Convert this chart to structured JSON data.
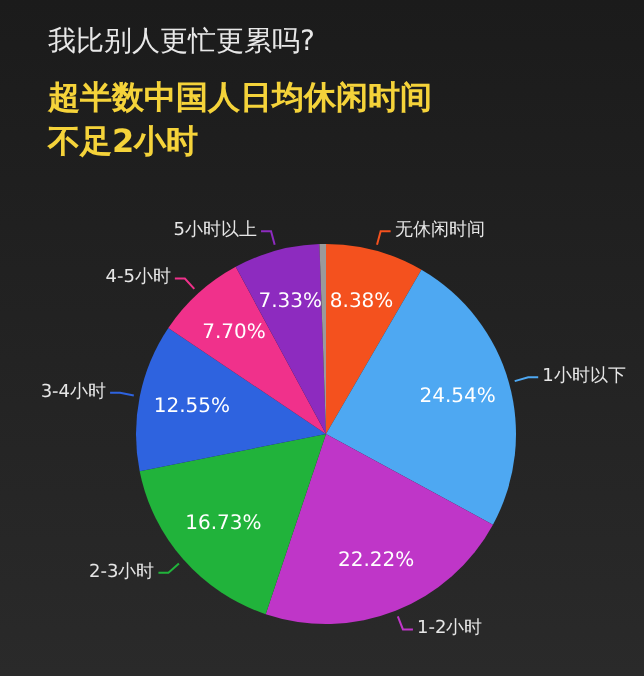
{
  "chart_data": {
    "type": "pie",
    "title": "我比别人更忙更累吗?",
    "subtitle": "超半数中国人日均休闲时间不足2小时",
    "categories": [
      "无休闲时间",
      "1小时以下",
      "1-2小时",
      "2-3小时",
      "3-4小时",
      "4-5小时",
      "5小时以上",
      null
    ],
    "values": [
      8.38,
      24.54,
      22.22,
      16.73,
      12.55,
      7.7,
      7.33,
      0.55
    ],
    "colors": [
      "#f4511e",
      "#4ea8f2",
      "#bf36c8",
      "#21b33b",
      "#2e63df",
      "#f0318b",
      "#8d2bbf",
      "#9a9a9a"
    ],
    "value_labels": [
      "8.38%",
      "24.54%",
      "22.22%",
      "16.73%",
      "12.55%",
      "7.70%",
      "7.33%",
      null
    ]
  }
}
